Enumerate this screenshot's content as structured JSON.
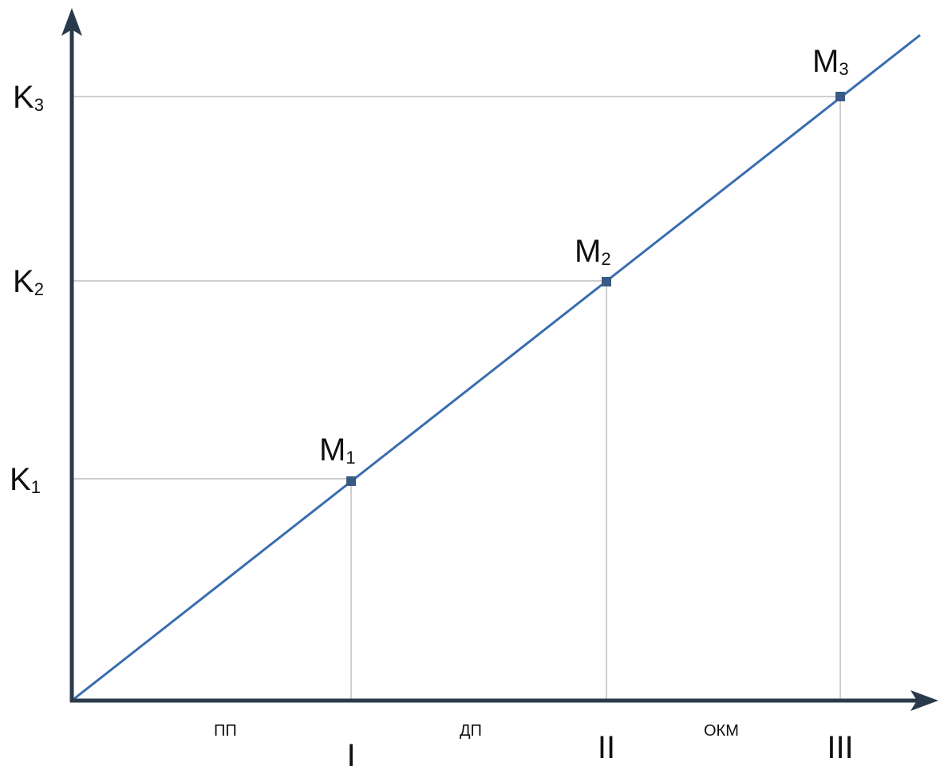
{
  "diagram": {
    "colors": {
      "axis": "#2b3a4a",
      "line": "#3a6db0",
      "guide": "#cfcfcf",
      "point": "#3a5a86",
      "text": "#111111"
    },
    "points": [
      {
        "label": "M",
        "sub": "1",
        "k": "K",
        "k_sub": "1",
        "stage": "I"
      },
      {
        "label": "M",
        "sub": "2",
        "k": "K",
        "k_sub": "2",
        "stage": "II"
      },
      {
        "label": "M",
        "sub": "3",
        "k": "K",
        "k_sub": "3",
        "stage": "III"
      }
    ],
    "regions": [
      "ПП",
      "ДП",
      "ОКМ"
    ]
  }
}
